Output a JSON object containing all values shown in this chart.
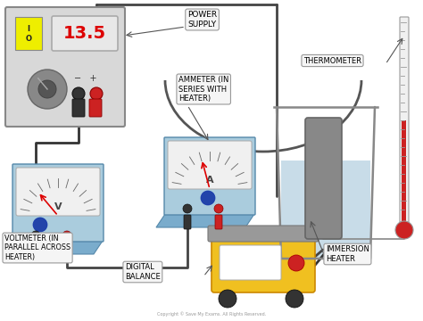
{
  "bg_color": "#ffffff",
  "labels": {
    "power_supply": "POWER\nSUPPLY",
    "ammeter": "AMMETER (IN\nSERIES WITH\nHEATER)",
    "thermometer": "THERMOMETER",
    "voltmeter": "VOLTMETER (IN\nPARALLEL ACROSS\nHEATER)",
    "digital_balance": "DIGITAL\nBALANCE",
    "immersion_heater": "IMMERSION\nHEATER",
    "display_value": "13.5",
    "copyright": "Copyright © Save My Exams. All Rights Reserved."
  },
  "colors": {
    "ps_body": "#d8d8d8",
    "ps_display_bg": "#e8e8e8",
    "ps_display_border": "#aaaaaa",
    "display_text": "#dd0000",
    "on_off_yellow": "#eeee00",
    "knob_outer": "#888888",
    "knob_inner": "#555555",
    "knob_arc": "#cccccc",
    "meter_body": "#aaccdd",
    "meter_face": "#f0f0f0",
    "meter_needle": "#dd0000",
    "wire_dark": "#555555",
    "wire_curved": "#666666",
    "plug_red": "#cc2222",
    "plug_black": "#222222",
    "beaker_fill": "#c8dce8",
    "beaker_line": "#888888",
    "heater_body": "#888888",
    "therm_tube": "#f0f0f0",
    "therm_fluid": "#cc2222",
    "therm_line": "#999999",
    "balance_body": "#f0c020",
    "balance_plat": "#999999",
    "balance_screen": "#ffffff",
    "balance_dot": "#cc2222",
    "balance_wheel": "#333333",
    "label_bg": "#f5f5f5",
    "label_ec": "#999999",
    "arrow_color": "#555555"
  }
}
